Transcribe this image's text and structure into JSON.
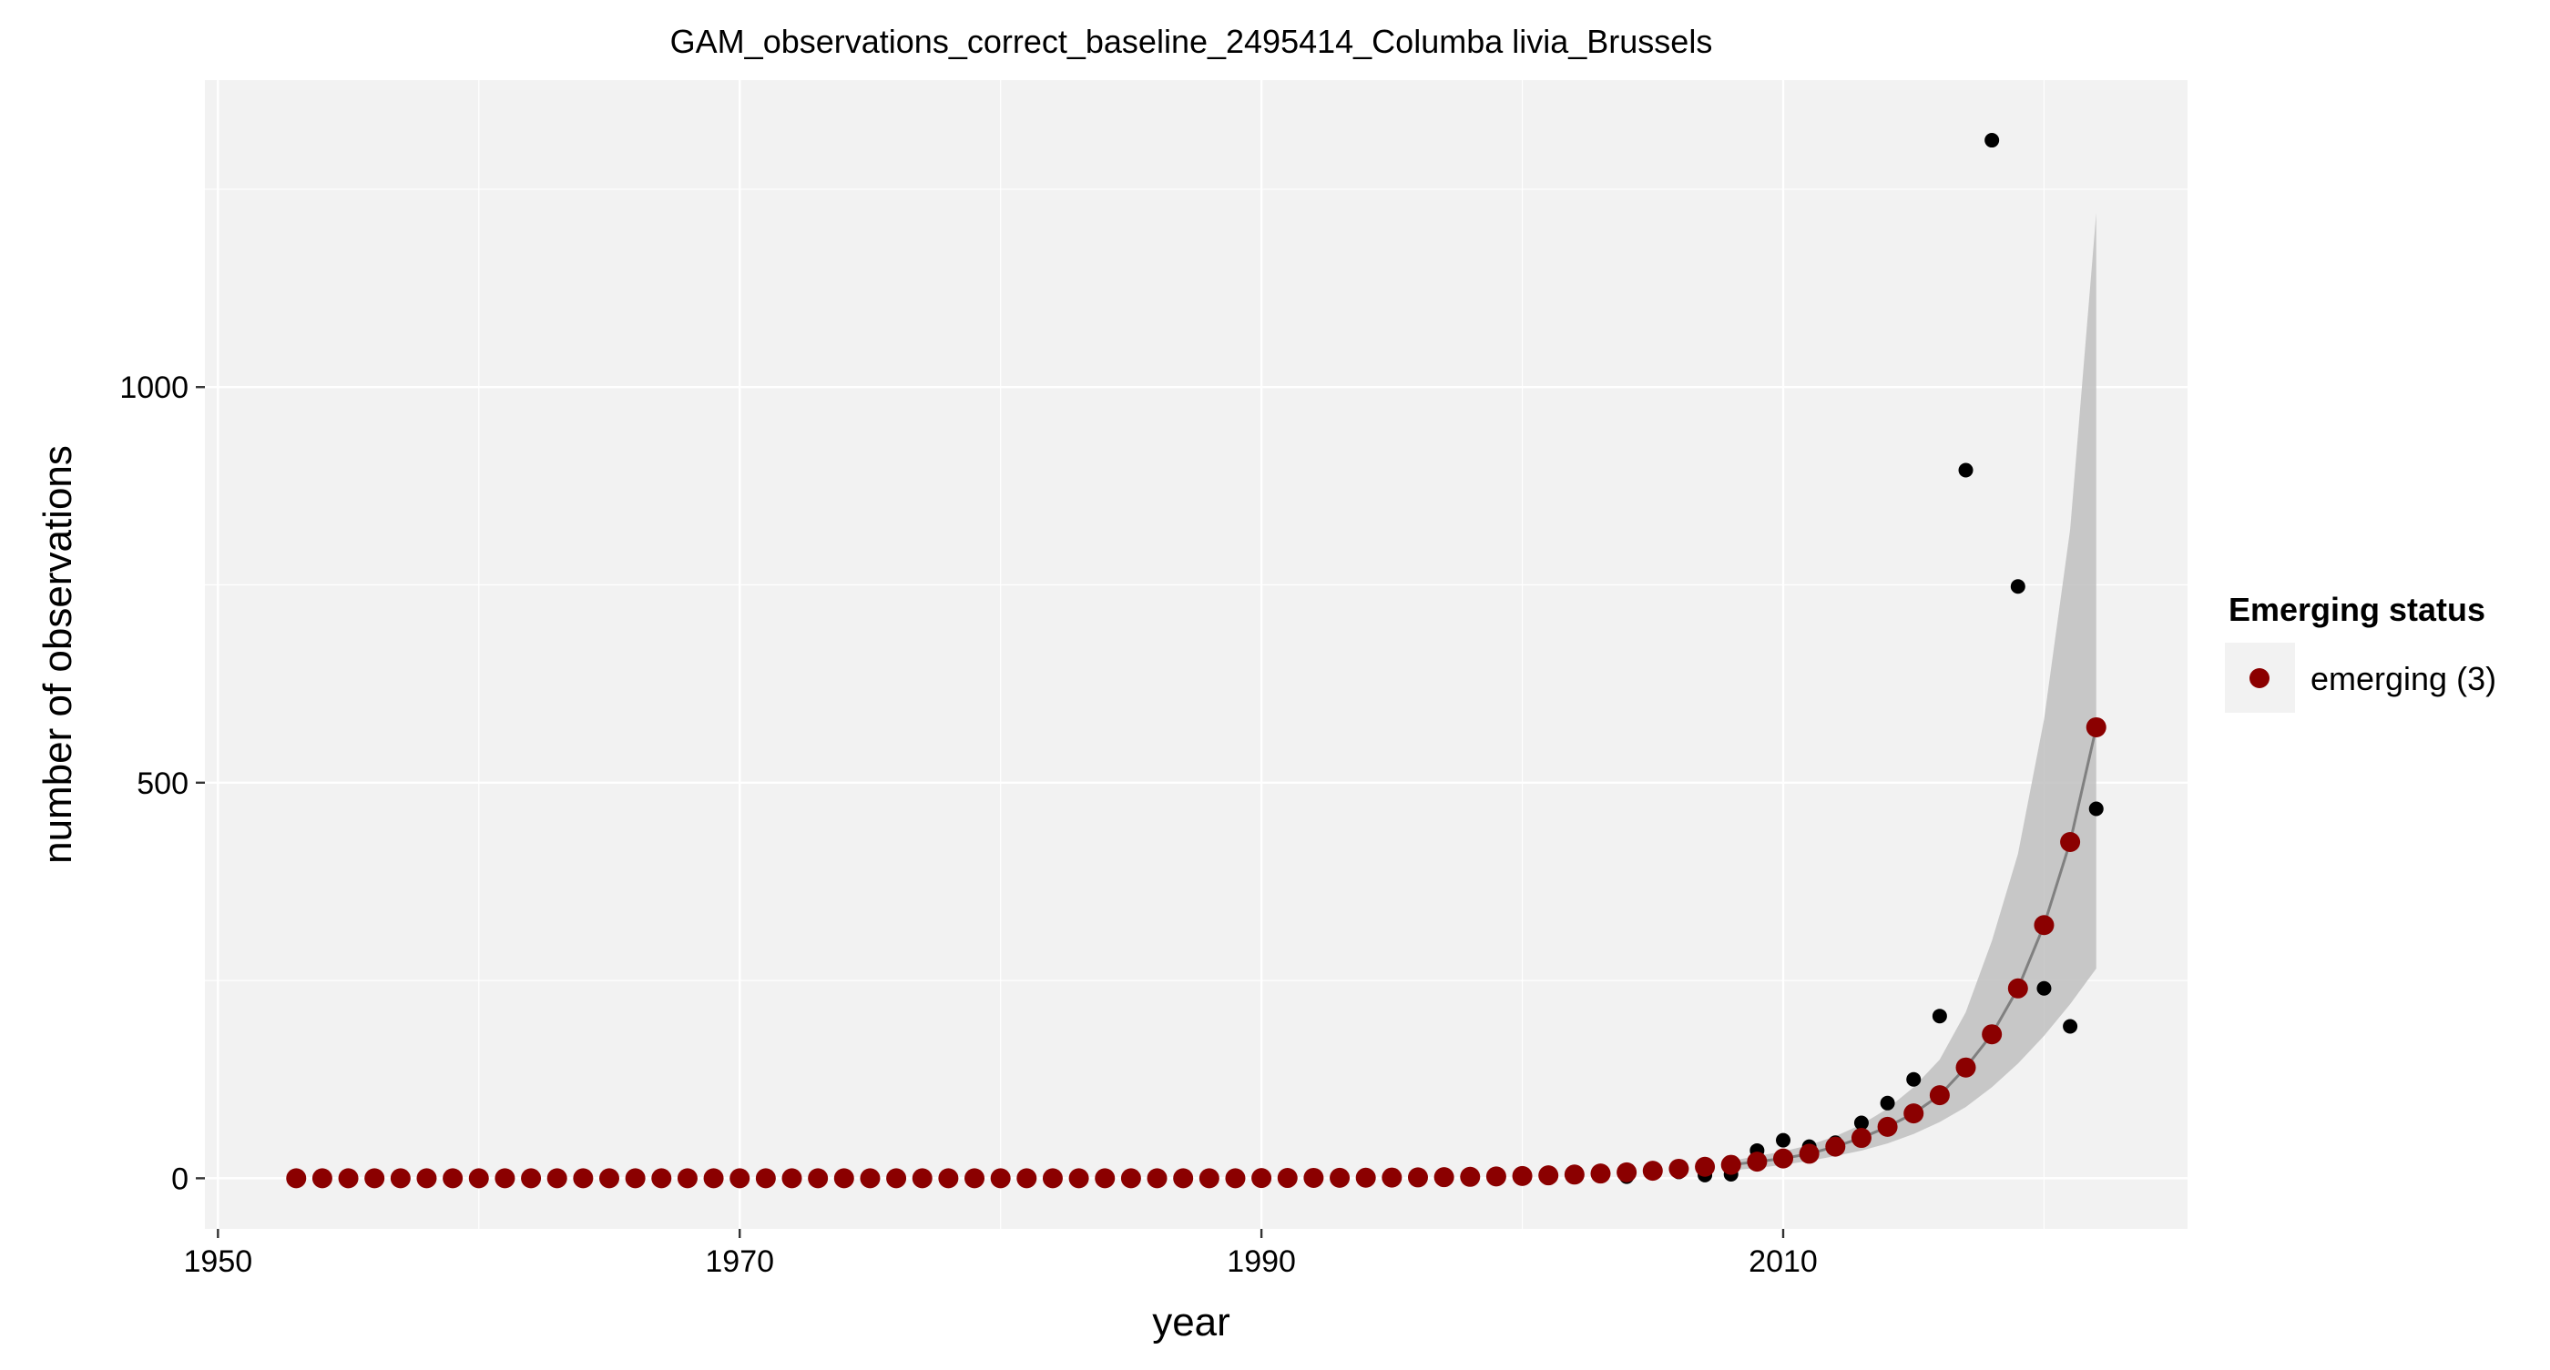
{
  "chart_data": {
    "type": "scatter",
    "title": "GAM_observations_correct_baseline_2495414_Columba livia_Brussels",
    "xlabel": "year",
    "ylabel": "number of observations",
    "xlim": [
      1949.5,
      2025.5
    ],
    "ylim": [
      -64,
      1388
    ],
    "x_ticks": [
      1950,
      1970,
      1990,
      2010
    ],
    "y_ticks": [
      0,
      500,
      1000
    ],
    "grid": true,
    "background": "#f2f2f2",
    "grid_color": "#ffffff",
    "legend": {
      "title": "Emerging status",
      "position": "right",
      "entries": [
        {
          "label": "emerging (3)",
          "color": "#8b0000"
        }
      ]
    },
    "colors": {
      "fitted_points": "#8b0000",
      "observed_points": "#000000",
      "fit_line": "#808080",
      "confidence_band": "#bfbfbf"
    },
    "series": [
      {
        "role": "observed",
        "x": [
          1999,
          2004,
          2006,
          2007,
          2008,
          2009,
          2010,
          2011,
          2012,
          2013,
          2014,
          2015,
          2016,
          2017,
          2018,
          2019,
          2020,
          2021,
          2022
        ],
        "y": [
          3,
          2,
          8,
          4,
          5,
          35,
          48,
          40,
          45,
          70,
          95,
          125,
          205,
          895,
          1312,
          748,
          240,
          192,
          467
        ]
      },
      {
        "role": "fitted",
        "x": [
          1953,
          1954,
          1955,
          1956,
          1957,
          1958,
          1959,
          1960,
          1961,
          1962,
          1963,
          1964,
          1965,
          1966,
          1967,
          1968,
          1969,
          1970,
          1971,
          1972,
          1973,
          1974,
          1975,
          1976,
          1977,
          1978,
          1979,
          1980,
          1981,
          1982,
          1983,
          1984,
          1985,
          1986,
          1987,
          1988,
          1989,
          1990,
          1991,
          1992,
          1993,
          1994,
          1995,
          1996,
          1997,
          1998,
          1999,
          2000,
          2001,
          2002,
          2003,
          2004,
          2005,
          2006,
          2007,
          2008,
          2009,
          2010,
          2011,
          2012,
          2013,
          2014,
          2015,
          2016,
          2017,
          2018,
          2019,
          2020,
          2021,
          2022
        ],
        "y": [
          0,
          0,
          0,
          0,
          0,
          0,
          0,
          0,
          0,
          0,
          0,
          0,
          0,
          0,
          0,
          0,
          0,
          0,
          0,
          0,
          0,
          0,
          0,
          0,
          0,
          0,
          0,
          0,
          0,
          0,
          0,
          0,
          0,
          0,
          0,
          0,
          0,
          0.3,
          0.4,
          0.5,
          0.6,
          0.7,
          0.9,
          1.1,
          1.4,
          1.8,
          2.3,
          2.9,
          3.7,
          4.7,
          6,
          7.5,
          9.5,
          12,
          14.5,
          17,
          21,
          25,
          31,
          40,
          51,
          65,
          82,
          105,
          140,
          182,
          240,
          320,
          425,
          570
        ]
      }
    ],
    "confidence_band": {
      "x": [
        2008,
        2009,
        2010,
        2011,
        2012,
        2013,
        2014,
        2015,
        2016,
        2017,
        2018,
        2019,
        2020,
        2021,
        2022
      ],
      "lower": [
        10,
        13,
        17,
        22,
        28,
        35,
        44,
        56,
        71,
        90,
        115,
        145,
        180,
        220,
        265
      ],
      "upper": [
        22,
        28,
        34,
        42,
        53,
        68,
        88,
        115,
        150,
        210,
        300,
        410,
        580,
        820,
        1220
      ]
    }
  }
}
